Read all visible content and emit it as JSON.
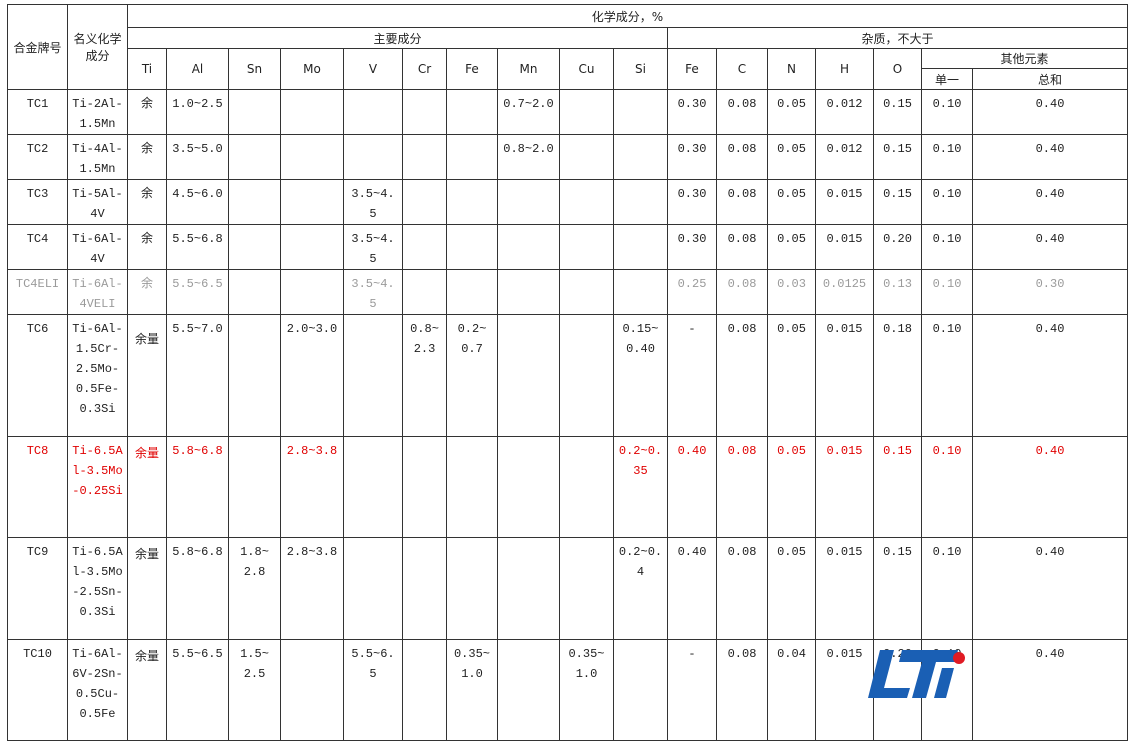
{
  "header": {
    "grade": "合金牌号",
    "nominal": "名义化学成分",
    "chem": "化学成分，%",
    "main": "主要成分",
    "impurity": "杂质，不大于",
    "other": "其他元素",
    "single": "单一",
    "total": "总和",
    "main_elements": [
      "Ti",
      "Al",
      "Sn",
      "Mo",
      "V",
      "Cr",
      "Fe",
      "Mn",
      "Cu",
      "Si"
    ],
    "impurity_elements": [
      "Fe",
      "C",
      "N",
      "H",
      "O"
    ]
  },
  "colors": {
    "highlight": "#e00000",
    "muted": "#9a9a9a",
    "logo_blue": "#1a5fb4",
    "logo_red": "#e01b24"
  },
  "logo_text": "LTi",
  "rows": [
    {
      "style": "",
      "cells": [
        "TC1",
        "Ti-2Al-1.5Mn",
        "余",
        "1.0~2.5",
        "",
        "",
        "",
        "",
        "",
        "0.7~2.0",
        "",
        "",
        "0.30",
        "0.08",
        "0.05",
        "0.012",
        "0.15",
        "0.10",
        "0.40"
      ]
    },
    {
      "style": "",
      "cells": [
        "TC2",
        "Ti-4Al-1.5Mn",
        "余",
        "3.5~5.0",
        "",
        "",
        "",
        "",
        "",
        "0.8~2.0",
        "",
        "",
        "0.30",
        "0.08",
        "0.05",
        "0.012",
        "0.15",
        "0.10",
        "0.40"
      ]
    },
    {
      "style": "",
      "cells": [
        "TC3",
        "Ti-5Al-4V",
        "余",
        "4.5~6.0",
        "",
        "",
        "3.5~4.5",
        "",
        "",
        "",
        "",
        "",
        "0.30",
        "0.08",
        "0.05",
        "0.015",
        "0.15",
        "0.10",
        "0.40"
      ]
    },
    {
      "style": "",
      "cells": [
        "TC4",
        "Ti-6Al-4V",
        "余",
        "5.5~6.8",
        "",
        "",
        "3.5~4.5",
        "",
        "",
        "",
        "",
        "",
        "0.30",
        "0.08",
        "0.05",
        "0.015",
        "0.20",
        "0.10",
        "0.40"
      ]
    },
    {
      "style": "gray",
      "cells": [
        "TC4ELI",
        "Ti-6Al-4VELI",
        "余",
        "5.5~6.5",
        "",
        "",
        "3.5~4.5",
        "",
        "",
        "",
        "",
        "",
        "0.25",
        "0.08",
        "0.03",
        "0.0125",
        "0.13",
        "0.10",
        "0.30"
      ]
    },
    {
      "style": "",
      "cells": [
        "TC6",
        "Ti-6Al-1.5Cr-2.5Mo-0.5Fe-0.3Si",
        "余量",
        "5.5~7.0",
        "",
        "2.0~3.0",
        "",
        "0.8~2.3",
        "0.2~0.7",
        "",
        "",
        "0.15~0.40",
        "-",
        "0.08",
        "0.05",
        "0.015",
        "0.18",
        "0.10",
        "0.40"
      ]
    },
    {
      "style": "red",
      "cells": [
        "TC8",
        "Ti-6.5Al-3.5Mo-0.25Si",
        "余量",
        "5.8~6.8",
        "",
        "2.8~3.8",
        "",
        "",
        "",
        "",
        "",
        "0.2~0.35",
        "0.40",
        "0.08",
        "0.05",
        "0.015",
        "0.15",
        "0.10",
        "0.40"
      ]
    },
    {
      "style": "",
      "cells": [
        "TC9",
        "Ti-6.5Al-3.5Mo-2.5Sn-0.3Si",
        "余量",
        "5.8~6.8",
        "1.8~2.8",
        "2.8~3.8",
        "",
        "",
        "",
        "",
        "",
        "0.2~0.4",
        "0.40",
        "0.08",
        "0.05",
        "0.015",
        "0.15",
        "0.10",
        "0.40"
      ]
    },
    {
      "style": "",
      "cells": [
        "TC10",
        "Ti-6Al-6V-2Sn-0.5Cu-0.5Fe",
        "余量",
        "5.5~6.5",
        "1.5~2.5",
        "",
        "5.5~6.5",
        "",
        "0.35~1.0",
        "",
        "0.35~1.0",
        "",
        "-",
        "0.08",
        "0.04",
        "0.015",
        "0.20",
        "0.10",
        "0.40"
      ]
    }
  ]
}
